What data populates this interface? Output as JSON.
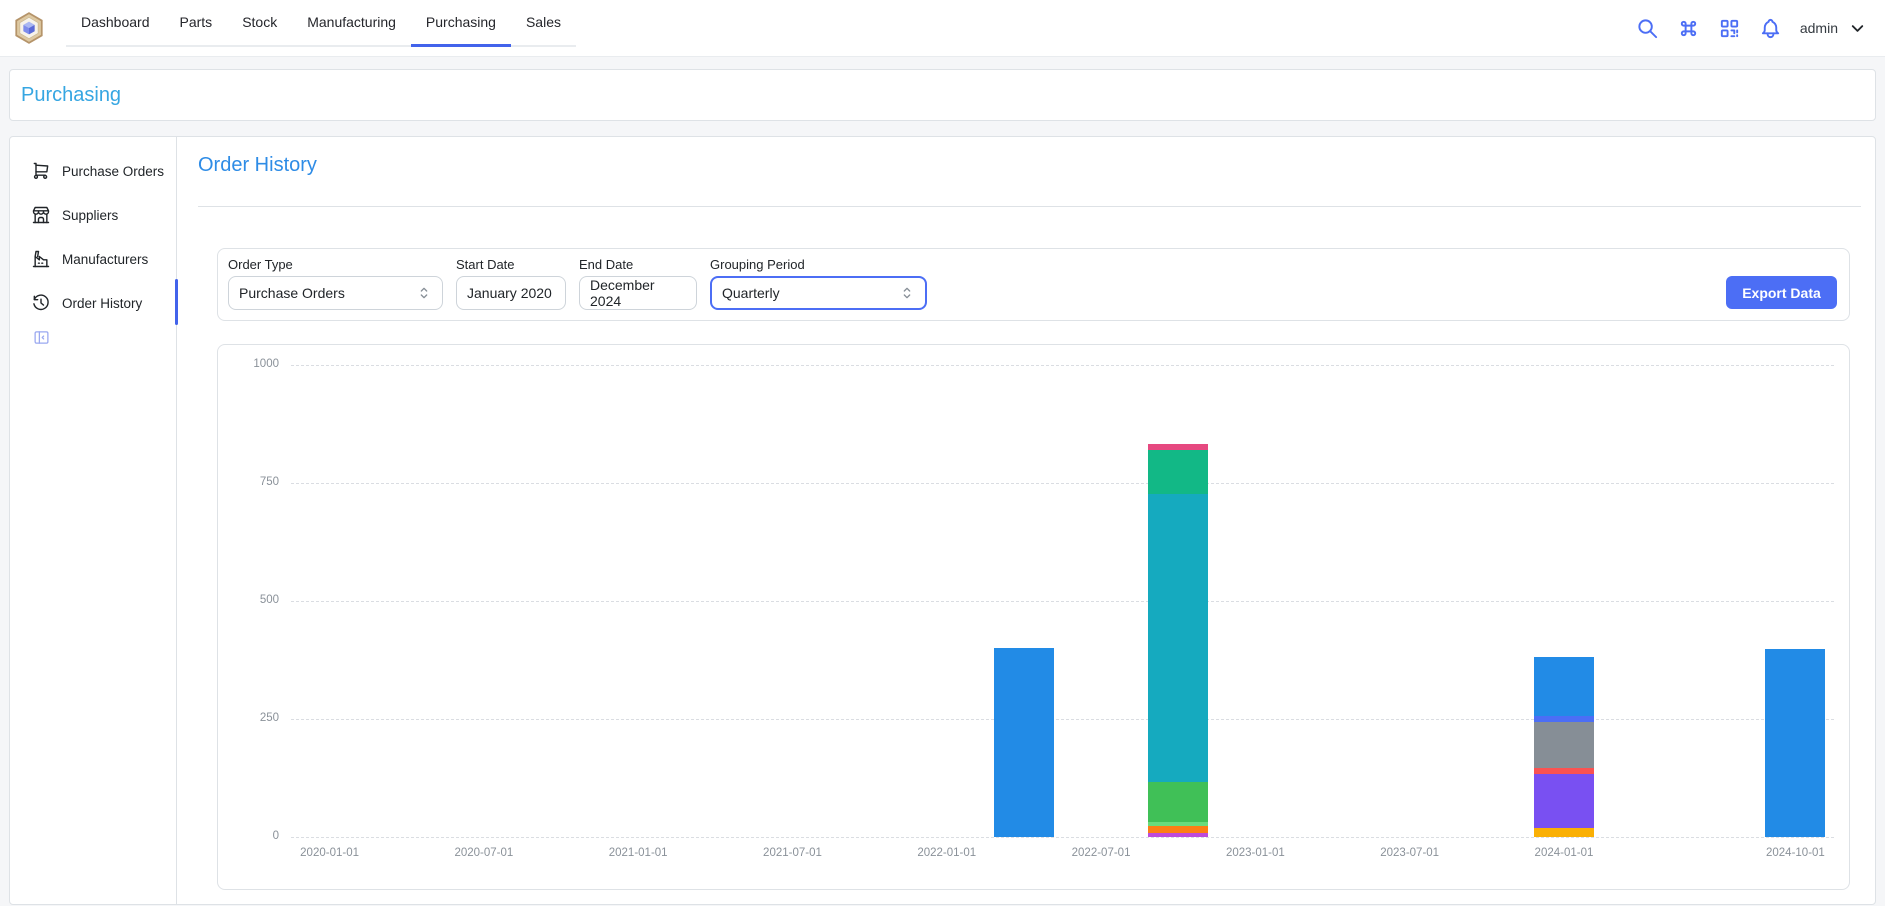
{
  "navbar": {
    "tabs": [
      {
        "label": "Dashboard",
        "active": false
      },
      {
        "label": "Parts",
        "active": false
      },
      {
        "label": "Stock",
        "active": false
      },
      {
        "label": "Manufacturing",
        "active": false
      },
      {
        "label": "Purchasing",
        "active": true
      },
      {
        "label": "Sales",
        "active": false
      }
    ],
    "icons": [
      "search",
      "command",
      "qrcode",
      "bell"
    ],
    "username": "admin",
    "accent_color": "#4263eb",
    "icon_color": "#4c6ef5"
  },
  "page_header": {
    "title": "Purchasing"
  },
  "sidebar": {
    "items": [
      {
        "label": "Purchase Orders",
        "icon": "shopping-cart",
        "active": false
      },
      {
        "label": "Suppliers",
        "icon": "building-store",
        "active": false
      },
      {
        "label": "Manufacturers",
        "icon": "building-factory",
        "active": false
      },
      {
        "label": "Order History",
        "icon": "history",
        "active": true
      }
    ],
    "collapse_icon": "layout-sidebar-collapse"
  },
  "main": {
    "title": "Order History",
    "filters": {
      "order_type": {
        "label": "Order Type",
        "value": "Purchase Orders"
      },
      "start_date": {
        "label": "Start Date",
        "value": "January 2020"
      },
      "end_date": {
        "label": "End Date",
        "value": "December 2024"
      },
      "grouping": {
        "label": "Grouping Period",
        "value": "Quarterly",
        "focused": true
      },
      "export_label": "Export Data"
    }
  },
  "chart_data": {
    "type": "bar",
    "stacked": true,
    "title": "",
    "xlabel": "",
    "ylabel": "",
    "grid": true,
    "legend": "none",
    "ylim": [
      0,
      1000
    ],
    "y_ticks": [
      0,
      250,
      500,
      750,
      1000
    ],
    "n_quarters": 20,
    "first_quarter": "2020-01-01",
    "x_ticks": [
      {
        "quarter_index": 0,
        "label": "2020-01-01"
      },
      {
        "quarter_index": 2,
        "label": "2020-07-01"
      },
      {
        "quarter_index": 4,
        "label": "2021-01-01"
      },
      {
        "quarter_index": 6,
        "label": "2021-07-01"
      },
      {
        "quarter_index": 8,
        "label": "2022-01-01"
      },
      {
        "quarter_index": 10,
        "label": "2022-07-01"
      },
      {
        "quarter_index": 12,
        "label": "2023-01-01"
      },
      {
        "quarter_index": 14,
        "label": "2023-07-01"
      },
      {
        "quarter_index": 16,
        "label": "2024-01-01"
      },
      {
        "quarter_index": 19,
        "label": "2024-10-01"
      }
    ],
    "bars": [
      {
        "quarter": "2022-04-01",
        "quarter_index": 9,
        "total": 400,
        "segments": [
          {
            "color": "#228be6",
            "value": 400
          }
        ]
      },
      {
        "quarter": "2022-10-01",
        "quarter_index": 11,
        "total": 833,
        "segments": [
          {
            "color": "#be4bdb",
            "value": 8
          },
          {
            "color": "#fd7e14",
            "value": 16
          },
          {
            "color": "#69db7c",
            "value": 7
          },
          {
            "color": "#40c057",
            "value": 85
          },
          {
            "color": "#15aabf",
            "value": 610
          },
          {
            "color": "#12b886",
            "value": 95
          },
          {
            "color": "#e64980",
            "value": 12
          }
        ]
      },
      {
        "quarter": "2024-01-01",
        "quarter_index": 16,
        "total": 381,
        "segments": [
          {
            "color": "#fab005",
            "value": 19
          },
          {
            "color": "#7950f2",
            "value": 114
          },
          {
            "color": "#fa5252",
            "value": 13
          },
          {
            "color": "#868e96",
            "value": 98
          },
          {
            "color": "#4c6ef5",
            "value": 12
          },
          {
            "color": "#228be6",
            "value": 125
          }
        ]
      },
      {
        "quarter": "2024-10-01",
        "quarter_index": 19,
        "total": 398,
        "segments": [
          {
            "color": "#228be6",
            "value": 398
          }
        ]
      }
    ]
  }
}
